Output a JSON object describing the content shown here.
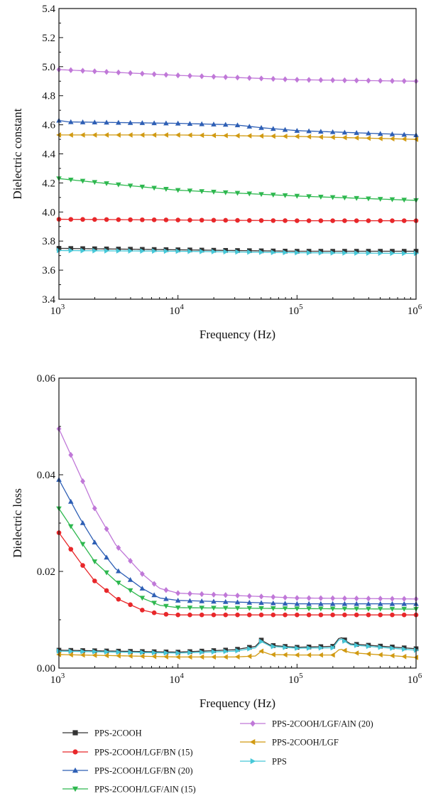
{
  "chart_data": [
    {
      "type": "line",
      "xscale": "log",
      "xlim": [
        1000,
        1000000
      ],
      "ylim": [
        3.4,
        5.4
      ],
      "xlabel": "Frequency (Hz)",
      "ylabel": "Dielectric constant",
      "xticks": [
        {
          "base": "10",
          "exp": "3"
        },
        {
          "base": "10",
          "exp": "4"
        },
        {
          "base": "10",
          "exp": "5"
        },
        {
          "base": "10",
          "exp": "6"
        }
      ],
      "yticks": [
        "3.4",
        "3.6",
        "3.8",
        "4.0",
        "4.2",
        "4.4",
        "4.6",
        "4.8",
        "5.0",
        "5.2",
        "5.4"
      ],
      "series": [
        {
          "name": "PPS-2COOH",
          "color": "#333333",
          "marker": "square",
          "values": [
            [
              1000,
              3.75
            ],
            [
              10000,
              3.74
            ],
            [
              100000,
              3.73
            ],
            [
              1000000,
              3.73
            ]
          ]
        },
        {
          "name": "PPS-2COOH/LGF/BN (15)",
          "color": "#e8272a",
          "marker": "circle",
          "values": [
            [
              1000,
              3.95
            ],
            [
              10000,
              3.945
            ],
            [
              100000,
              3.94
            ],
            [
              1000000,
              3.94
            ]
          ]
        },
        {
          "name": "PPS-2COOH/LGF/BN (20)",
          "color": "#2e5fb5",
          "marker": "triangle-up",
          "values": [
            [
              1000,
              4.63
            ],
            [
              1200,
              4.62
            ],
            [
              10000,
              4.61
            ],
            [
              30000,
              4.6
            ],
            [
              50000,
              4.58
            ],
            [
              100000,
              4.56
            ],
            [
              1000000,
              4.53
            ]
          ]
        },
        {
          "name": "PPS-2COOH/LGF/AlN (15)",
          "color": "#2eb84f",
          "marker": "triangle-down",
          "values": [
            [
              1000,
              4.23
            ],
            [
              3000,
              4.19
            ],
            [
              10000,
              4.15
            ],
            [
              100000,
              4.11
            ],
            [
              1000000,
              4.08
            ]
          ]
        },
        {
          "name": "PPS-2COOH/LGF/AlN (20)",
          "color": "#c078d8",
          "marker": "diamond",
          "values": [
            [
              1000,
              4.98
            ],
            [
              10000,
              4.94
            ],
            [
              100000,
              4.91
            ],
            [
              1000000,
              4.9
            ]
          ]
        },
        {
          "name": "PPS-2COOH/LGF",
          "color": "#d19a12",
          "marker": "triangle-left",
          "values": [
            [
              1000,
              4.53
            ],
            [
              10000,
              4.53
            ],
            [
              100000,
              4.52
            ],
            [
              1000000,
              4.5
            ]
          ]
        },
        {
          "name": "PPS",
          "color": "#46c8d8",
          "marker": "triangle-right",
          "values": [
            [
              1000,
              3.735
            ],
            [
              10000,
              3.73
            ],
            [
              100000,
              3.72
            ],
            [
              1000000,
              3.715
            ]
          ]
        }
      ]
    },
    {
      "type": "line",
      "xscale": "log",
      "xlim": [
        1000,
        1000000
      ],
      "ylim": [
        0,
        0.06
      ],
      "xlabel": "Frequency (Hz)",
      "ylabel": "Dielectric loss",
      "xticks": [
        {
          "base": "10",
          "exp": "3"
        },
        {
          "base": "10",
          "exp": "4"
        },
        {
          "base": "10",
          "exp": "5"
        },
        {
          "base": "10",
          "exp": "6"
        }
      ],
      "yticks": [
        "0.00",
        "0.02",
        "0.04",
        "0.06"
      ],
      "series": [
        {
          "name": "PPS-2COOH",
          "color": "#333333",
          "marker": "square",
          "values": [
            [
              1000,
              0.0037
            ],
            [
              10000,
              0.0033
            ],
            [
              30000,
              0.0038
            ],
            [
              45000,
              0.0045
            ],
            [
              50000,
              0.0058
            ],
            [
              60000,
              0.0047
            ],
            [
              100000,
              0.0043
            ],
            [
              200000,
              0.0045
            ],
            [
              230000,
              0.0065
            ],
            [
              280000,
              0.005
            ],
            [
              1000000,
              0.004
            ]
          ]
        },
        {
          "name": "PPS-2COOH/LGF/BN (15)",
          "color": "#e8272a",
          "marker": "circle",
          "values": [
            [
              1000,
              0.028
            ],
            [
              1500,
              0.022
            ],
            [
              2000,
              0.018
            ],
            [
              3000,
              0.0145
            ],
            [
              5000,
              0.012
            ],
            [
              7000,
              0.0112
            ],
            [
              10000,
              0.011
            ],
            [
              100000,
              0.011
            ],
            [
              1000000,
              0.011
            ]
          ]
        },
        {
          "name": "PPS-2COOH/LGF/BN (20)",
          "color": "#2e5fb5",
          "marker": "triangle-up",
          "values": [
            [
              1000,
              0.039
            ],
            [
              1500,
              0.031
            ],
            [
              2000,
              0.026
            ],
            [
              3000,
              0.0205
            ],
            [
              5000,
              0.0165
            ],
            [
              7000,
              0.0145
            ],
            [
              10000,
              0.014
            ],
            [
              100000,
              0.0133
            ],
            [
              1000000,
              0.0133
            ]
          ]
        },
        {
          "name": "PPS-2COOH/LGF/AlN (15)",
          "color": "#2eb84f",
          "marker": "triangle-down",
          "values": [
            [
              1000,
              0.033
            ],
            [
              1500,
              0.0265
            ],
            [
              2000,
              0.022
            ],
            [
              3000,
              0.018
            ],
            [
              5000,
              0.0145
            ],
            [
              7000,
              0.013
            ],
            [
              10000,
              0.0125
            ],
            [
              100000,
              0.0123
            ],
            [
              1000000,
              0.0122
            ]
          ]
        },
        {
          "name": "PPS-2COOH/LGF/AlN (20)",
          "color": "#c078d8",
          "marker": "diamond",
          "values": [
            [
              1000,
              0.0495
            ],
            [
              1500,
              0.04
            ],
            [
              2000,
              0.033
            ],
            [
              3000,
              0.0255
            ],
            [
              5000,
              0.0195
            ],
            [
              7000,
              0.0165
            ],
            [
              10000,
              0.0155
            ],
            [
              100000,
              0.0145
            ],
            [
              1000000,
              0.0143
            ]
          ]
        },
        {
          "name": "PPS-2COOH/LGF",
          "color": "#d19a12",
          "marker": "triangle-left",
          "values": [
            [
              1000,
              0.0028
            ],
            [
              10000,
              0.0023
            ],
            [
              30000,
              0.0023
            ],
            [
              45000,
              0.0025
            ],
            [
              50000,
              0.0035
            ],
            [
              60000,
              0.0028
            ],
            [
              100000,
              0.0027
            ],
            [
              200000,
              0.0027
            ],
            [
              230000,
              0.004
            ],
            [
              280000,
              0.0032
            ],
            [
              1000000,
              0.0022
            ]
          ]
        },
        {
          "name": "PPS",
          "color": "#46c8d8",
          "marker": "triangle-right",
          "values": [
            [
              1000,
              0.0035
            ],
            [
              10000,
              0.0031
            ],
            [
              30000,
              0.0035
            ],
            [
              45000,
              0.0042
            ],
            [
              50000,
              0.0055
            ],
            [
              60000,
              0.0045
            ],
            [
              100000,
              0.0041
            ],
            [
              200000,
              0.0042
            ],
            [
              230000,
              0.0062
            ],
            [
              280000,
              0.0048
            ],
            [
              1000000,
              0.0037
            ]
          ]
        }
      ]
    }
  ]
}
